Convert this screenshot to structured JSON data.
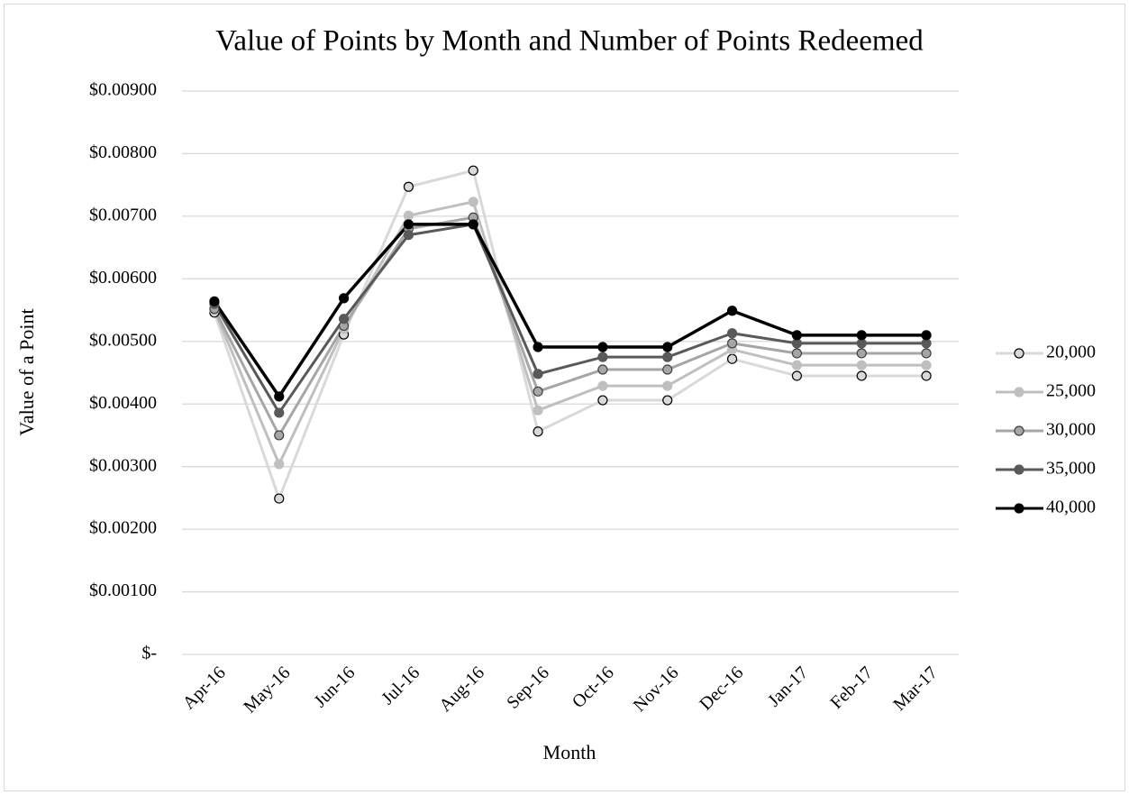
{
  "chart_data": {
    "type": "line",
    "title": "Value of Points by Month and Number of Points Redeemed",
    "x_label": "Month",
    "y_label": "Value of a Point",
    "categories": [
      "Apr-16",
      "May-16",
      "Jun-16",
      "Jul-16",
      "Aug-16",
      "Sep-16",
      "Oct-16",
      "Nov-16",
      "Dec-16",
      "Jan-17",
      "Feb-17",
      "Mar-17"
    ],
    "series": [
      {
        "name": "20,000",
        "color": "#d9d9d9",
        "marker_color": "#d9d9d9",
        "marker_edge": "#000000",
        "values": [
          0.00546,
          0.00249,
          0.00511,
          0.00747,
          0.00773,
          0.00356,
          0.00406,
          0.00406,
          0.00472,
          0.00445,
          0.00445,
          0.00445
        ]
      },
      {
        "name": "25,000",
        "color": "#bfbfbf",
        "marker_color": "#bfbfbf",
        "marker_edge": "#bfbfbf",
        "values": [
          0.0055,
          0.00304,
          0.0052,
          0.00701,
          0.00723,
          0.0039,
          0.00429,
          0.00429,
          0.00487,
          0.00462,
          0.00462,
          0.00462
        ]
      },
      {
        "name": "30,000",
        "color": "#a6a6a6",
        "marker_color": "#a6a6a6",
        "marker_edge": "#404040",
        "values": [
          0.00552,
          0.0035,
          0.00525,
          0.0068,
          0.00698,
          0.0042,
          0.00455,
          0.00455,
          0.00497,
          0.00481,
          0.00481,
          0.00481
        ]
      },
      {
        "name": "35,000",
        "color": "#595959",
        "marker_color": "#595959",
        "marker_edge": "#595959",
        "values": [
          0.0056,
          0.00386,
          0.00536,
          0.0067,
          0.00687,
          0.00448,
          0.00475,
          0.00475,
          0.00513,
          0.00497,
          0.00497,
          0.00497
        ]
      },
      {
        "name": "40,000",
        "color": "#000000",
        "marker_color": "#000000",
        "marker_edge": "#000000",
        "values": [
          0.00564,
          0.00412,
          0.00569,
          0.00687,
          0.00687,
          0.00491,
          0.00491,
          0.00491,
          0.00549,
          0.0051,
          0.0051,
          0.0051
        ]
      }
    ],
    "ylim": [
      0,
      0.009
    ],
    "yticks": [
      {
        "value": 0,
        "label": "$-"
      },
      {
        "value": 0.001,
        "label": "$0.00100"
      },
      {
        "value": 0.002,
        "label": "$0.00200"
      },
      {
        "value": 0.003,
        "label": "$0.00300"
      },
      {
        "value": 0.004,
        "label": "$0.00400"
      },
      {
        "value": 0.005,
        "label": "$0.00500"
      },
      {
        "value": 0.006,
        "label": "$0.00600"
      },
      {
        "value": 0.007,
        "label": "$0.00700"
      },
      {
        "value": 0.008,
        "label": "$0.00800"
      },
      {
        "value": 0.009,
        "label": "$0.00900"
      }
    ],
    "grid": true,
    "legend": "right"
  }
}
